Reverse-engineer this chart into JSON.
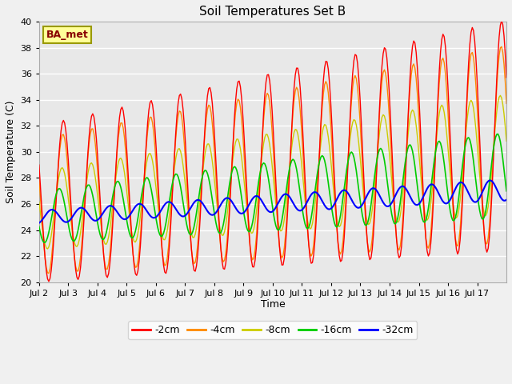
{
  "title": "Soil Temperatures Set B",
  "xlabel": "Time",
  "ylabel": "Soil Temperature (C)",
  "ylim": [
    20,
    40
  ],
  "yticks": [
    20,
    22,
    24,
    26,
    28,
    30,
    32,
    34,
    36,
    38,
    40
  ],
  "x_labels": [
    "Jul 2",
    "Jul 3",
    "Jul 4",
    "Jul 5",
    "Jul 6",
    "Jul 7",
    "Jul 8",
    "Jul 9",
    "Jul 10",
    "Jul 11",
    "Jul 12",
    "Jul 13",
    "Jul 14",
    "Jul 15",
    "Jul 16",
    "Jul 17"
  ],
  "colors": {
    "-2cm": "#ff0000",
    "-4cm": "#ff8800",
    "-8cm": "#cccc00",
    "-16cm": "#00cc00",
    "-32cm": "#0000ff"
  },
  "label_box_text": "BA_met",
  "label_box_facecolor": "#ffff99",
  "label_box_edgecolor": "#999900",
  "label_box_textcolor": "#880000",
  "plot_bg_color": "#e8e8e8",
  "fig_bg_color": "#f0f0f0"
}
